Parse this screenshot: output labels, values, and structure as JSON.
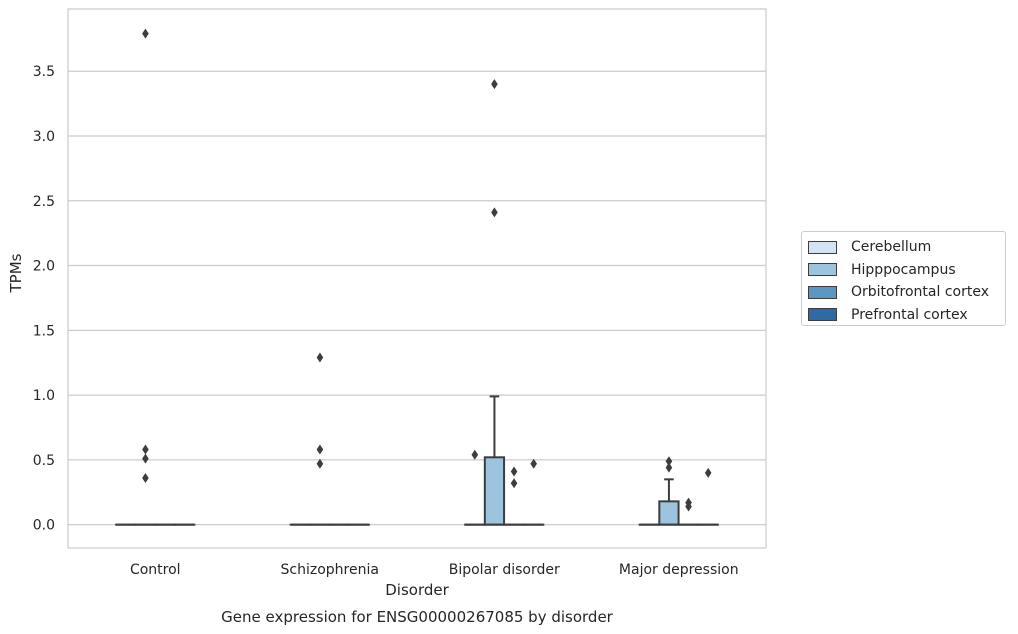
{
  "chart_data": {
    "type": "box",
    "title": "Gene expression for ENSG00000267085 by disorder",
    "xlabel": "Disorder",
    "ylabel": "TPMs",
    "ylim": [
      -0.18,
      3.98
    ],
    "yticks": [
      0.0,
      0.5,
      1.0,
      1.5,
      2.0,
      2.5,
      3.0,
      3.5
    ],
    "ytick_labels": [
      "0.0",
      "0.5",
      "1.0",
      "1.5",
      "2.0",
      "2.5",
      "3.0",
      "3.5"
    ],
    "categories": [
      "Control",
      "Schizophrenia",
      "Bipolar disorder",
      "Major depression"
    ],
    "grid": true,
    "legend_position": "right",
    "series": [
      {
        "name": "Cerebellum",
        "color": "#d3e3f1",
        "boxes": [
          {
            "q1": 0,
            "median": 0,
            "q3": 0,
            "whisker_low": 0,
            "whisker_high": 0,
            "outliers": []
          },
          {
            "q1": 0,
            "median": 0,
            "q3": 0,
            "whisker_low": 0,
            "whisker_high": 0,
            "outliers": []
          },
          {
            "q1": 0,
            "median": 0,
            "q3": 0,
            "whisker_low": 0,
            "whisker_high": 0,
            "outliers": [
              0.54
            ]
          },
          {
            "q1": 0,
            "median": 0,
            "q3": 0,
            "whisker_low": 0,
            "whisker_high": 0,
            "outliers": []
          }
        ]
      },
      {
        "name": "Hipppocampus",
        "color": "#9cc4de",
        "boxes": [
          {
            "q1": 0,
            "median": 0,
            "q3": 0,
            "whisker_low": 0,
            "whisker_high": 0,
            "outliers": [
              3.79,
              0.51,
              0.36,
              0.58
            ]
          },
          {
            "q1": 0,
            "median": 0,
            "q3": 0,
            "whisker_low": 0,
            "whisker_high": 0,
            "outliers": [
              1.29,
              0.58,
              0.47
            ]
          },
          {
            "q1": 0,
            "median": 0,
            "q3": 0.52,
            "whisker_low": 0,
            "whisker_high": 0.99,
            "outliers": [
              3.4,
              2.41
            ]
          },
          {
            "q1": 0,
            "median": 0,
            "q3": 0.18,
            "whisker_low": 0,
            "whisker_high": 0.35,
            "outliers": [
              0.49,
              0.44
            ]
          }
        ]
      },
      {
        "name": "Orbitofrontal cortex",
        "color": "#5b97c4",
        "boxes": [
          {
            "q1": 0,
            "median": 0,
            "q3": 0,
            "whisker_low": 0,
            "whisker_high": 0,
            "outliers": []
          },
          {
            "q1": 0,
            "median": 0,
            "q3": 0,
            "whisker_low": 0,
            "whisker_high": 0,
            "outliers": []
          },
          {
            "q1": 0,
            "median": 0,
            "q3": 0,
            "whisker_low": 0,
            "whisker_high": 0,
            "outliers": [
              0.41,
              0.32
            ]
          },
          {
            "q1": 0,
            "median": 0,
            "q3": 0,
            "whisker_low": 0,
            "whisker_high": 0,
            "outliers": [
              0.17,
              0.14
            ]
          }
        ]
      },
      {
        "name": "Prefrontal cortex",
        "color": "#2d6aa6",
        "boxes": [
          {
            "q1": 0,
            "median": 0,
            "q3": 0,
            "whisker_low": 0,
            "whisker_high": 0,
            "outliers": []
          },
          {
            "q1": 0,
            "median": 0,
            "q3": 0,
            "whisker_low": 0,
            "whisker_high": 0,
            "outliers": []
          },
          {
            "q1": 0,
            "median": 0,
            "q3": 0,
            "whisker_low": 0,
            "whisker_high": 0,
            "outliers": [
              0.47
            ]
          },
          {
            "q1": 0,
            "median": 0,
            "q3": 0,
            "whisker_low": 0,
            "whisker_high": 0,
            "outliers": [
              0.4
            ]
          }
        ]
      }
    ]
  }
}
